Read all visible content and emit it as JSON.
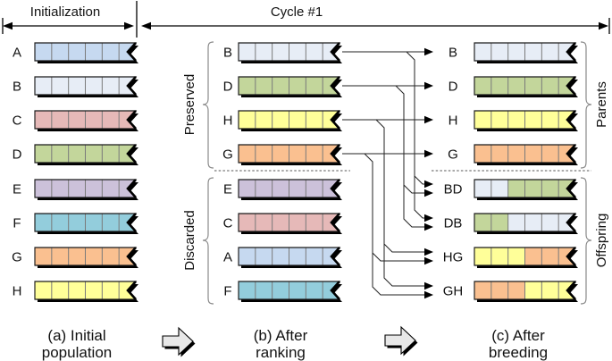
{
  "header": {
    "left": "Initialization",
    "right": "Cycle #1"
  },
  "palette": {
    "A": "#c6d9f0",
    "B": "#e7edf6",
    "C": "#e6b9b8",
    "D": "#c3d69b",
    "E": "#ccc1da",
    "F": "#93cddc",
    "G": "#fac090",
    "H": "#ffff99"
  },
  "colors": {
    "shadow": "#000000",
    "block_arrow_fill": "#e8e8e8",
    "connector": "#222222",
    "brace": "#8a8a8a"
  },
  "columns": {
    "initial": {
      "caption": [
        "(a) Initial",
        "population"
      ],
      "rows": [
        {
          "label": "A",
          "genes": [
            "A",
            "A",
            "A",
            "A",
            "A",
            "A"
          ]
        },
        {
          "label": "B",
          "genes": [
            "B",
            "B",
            "B",
            "B",
            "B",
            "B"
          ]
        },
        {
          "label": "C",
          "genes": [
            "C",
            "C",
            "C",
            "C",
            "C",
            "C"
          ]
        },
        {
          "label": "D",
          "genes": [
            "D",
            "D",
            "D",
            "D",
            "D",
            "D"
          ]
        },
        {
          "label": "E",
          "genes": [
            "E",
            "E",
            "E",
            "E",
            "E",
            "E"
          ]
        },
        {
          "label": "F",
          "genes": [
            "F",
            "F",
            "F",
            "F",
            "F",
            "F"
          ]
        },
        {
          "label": "G",
          "genes": [
            "G",
            "G",
            "G",
            "G",
            "G",
            "G"
          ]
        },
        {
          "label": "H",
          "genes": [
            "H",
            "H",
            "H",
            "H",
            "H",
            "H"
          ]
        }
      ]
    },
    "ranked": {
      "caption": [
        "(b) After",
        "ranking"
      ],
      "groups": [
        {
          "label": "Preserved",
          "rows": [
            {
              "label": "B",
              "genes": [
                "B",
                "B",
                "B",
                "B",
                "B",
                "B"
              ]
            },
            {
              "label": "D",
              "genes": [
                "D",
                "D",
                "D",
                "D",
                "D",
                "D"
              ]
            },
            {
              "label": "H",
              "genes": [
                "H",
                "H",
                "H",
                "H",
                "H",
                "H"
              ]
            },
            {
              "label": "G",
              "genes": [
                "G",
                "G",
                "G",
                "G",
                "G",
                "G"
              ]
            }
          ]
        },
        {
          "label": "Discarded",
          "rows": [
            {
              "label": "E",
              "genes": [
                "E",
                "E",
                "E",
                "E",
                "E",
                "E"
              ]
            },
            {
              "label": "C",
              "genes": [
                "C",
                "C",
                "C",
                "C",
                "C",
                "C"
              ]
            },
            {
              "label": "A",
              "genes": [
                "A",
                "A",
                "A",
                "A",
                "A",
                "A"
              ]
            },
            {
              "label": "F",
              "genes": [
                "F",
                "F",
                "F",
                "F",
                "F",
                "F"
              ]
            }
          ]
        }
      ]
    },
    "bred": {
      "caption": [
        "(c) After",
        "breeding"
      ],
      "groups": [
        {
          "label": "Parents",
          "rows": [
            {
              "label": "B",
              "genes": [
                "B",
                "B",
                "B",
                "B",
                "B",
                "B"
              ]
            },
            {
              "label": "D",
              "genes": [
                "D",
                "D",
                "D",
                "D",
                "D",
                "D"
              ]
            },
            {
              "label": "H",
              "genes": [
                "H",
                "H",
                "H",
                "H",
                "H",
                "H"
              ]
            },
            {
              "label": "G",
              "genes": [
                "G",
                "G",
                "G",
                "G",
                "G",
                "G"
              ]
            }
          ]
        },
        {
          "label": "Offspring",
          "rows": [
            {
              "label": "BD",
              "genes": [
                "B",
                "B",
                "D",
                "D",
                "D",
                "D"
              ]
            },
            {
              "label": "DB",
              "genes": [
                "D",
                "D",
                "B",
                "B",
                "B",
                "B"
              ]
            },
            {
              "label": "HG",
              "genes": [
                "H",
                "H",
                "H",
                "G",
                "G",
                "G"
              ]
            },
            {
              "label": "GH",
              "genes": [
                "G",
                "G",
                "G",
                "H",
                "H",
                "H"
              ]
            }
          ]
        }
      ]
    }
  },
  "breeding_pairs": [
    {
      "parents": [
        "B",
        "D"
      ],
      "offspring": [
        "BD",
        "DB"
      ]
    },
    {
      "parents": [
        "H",
        "G"
      ],
      "offspring": [
        "HG",
        "GH"
      ]
    }
  ]
}
